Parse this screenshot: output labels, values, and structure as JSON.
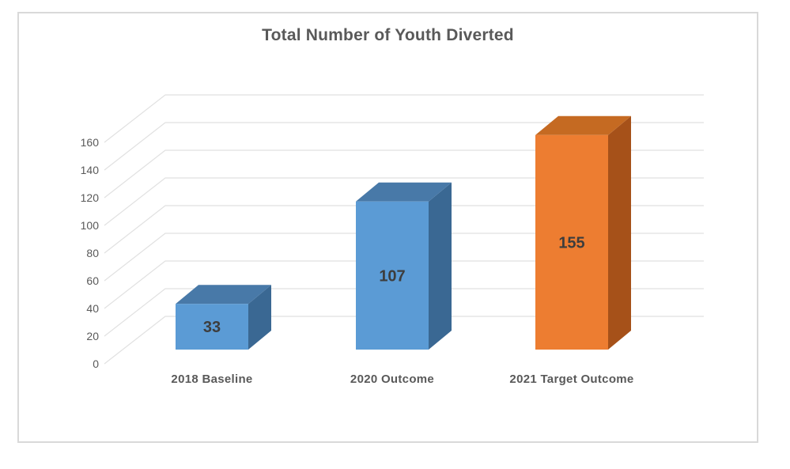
{
  "chart_data": {
    "type": "bar",
    "variant": "3d-column",
    "title": "Total Number of Youth Diverted",
    "categories": [
      "2018 Baseline",
      "2020 Outcome",
      "2021 Target Outcome"
    ],
    "values": [
      33,
      107,
      155
    ],
    "data_labels": [
      "33",
      "107",
      "155"
    ],
    "xlabel": "",
    "ylabel": "",
    "ylim": [
      0,
      160
    ],
    "y_ticks": [
      0,
      20,
      40,
      60,
      80,
      100,
      120,
      140,
      160
    ],
    "grid": true,
    "legend": false,
    "series_colors": [
      {
        "front": "#5B9BD5",
        "side": "#3A6893",
        "top": "#4879A8"
      },
      {
        "front": "#5B9BD5",
        "side": "#3A6893",
        "top": "#4879A8"
      },
      {
        "front": "#ED7D31",
        "side": "#A65119",
        "top": "#C56A22"
      }
    ],
    "colors": {
      "gridline": "#E1E1E1",
      "title_text": "#595959",
      "tick_label_text": "#595959",
      "category_label_text": "#595959",
      "data_label_text": "#3D3D3D",
      "frame_border": "#D9D9D9",
      "background": "#FFFFFF"
    }
  }
}
